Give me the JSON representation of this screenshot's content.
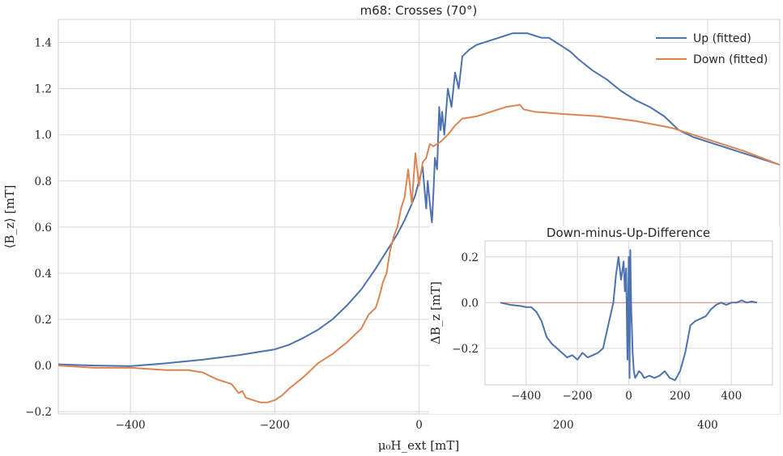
{
  "chart_data": [
    {
      "type": "line",
      "title": "m68: Crosses (70°)",
      "xlabel": "μ₀H_ext [mT]",
      "ylabel": "⟨B_z⟩ [mT]",
      "xlim": [
        -500,
        500
      ],
      "ylim": [
        -0.21,
        1.5
      ],
      "xticks": [
        -400,
        -200,
        0,
        200,
        400
      ],
      "xtick_labels": [
        "−400",
        "−200",
        "0",
        "200",
        "400"
      ],
      "yticks": [
        -0.2,
        0.0,
        0.2,
        0.4,
        0.6,
        0.8,
        1.0,
        1.2,
        1.4
      ],
      "ytick_labels": [
        "−0.2",
        "0.0",
        "0.2",
        "0.4",
        "0.6",
        "0.8",
        "1.0",
        "1.2",
        "1.4"
      ],
      "grid": true,
      "legend_position": "top-right",
      "series": [
        {
          "name": "Up (fitted)",
          "color": "#4c72b0",
          "x": [
            -500,
            -450,
            -400,
            -350,
            -300,
            -250,
            -200,
            -180,
            -160,
            -140,
            -120,
            -100,
            -80,
            -60,
            -50,
            -40,
            -30,
            -20,
            -10,
            -5,
            0,
            5,
            8,
            10,
            12,
            15,
            18,
            20,
            22,
            25,
            28,
            30,
            32,
            35,
            40,
            45,
            50,
            55,
            60,
            70,
            80,
            100,
            120,
            130,
            140,
            150,
            160,
            170,
            180,
            190,
            200,
            210,
            220,
            240,
            260,
            280,
            300,
            320,
            340,
            360,
            380,
            400,
            420,
            440,
            460,
            480,
            500
          ],
          "y": [
            0.005,
            0.0,
            -0.003,
            0.01,
            0.025,
            0.045,
            0.07,
            0.09,
            0.12,
            0.155,
            0.2,
            0.26,
            0.33,
            0.42,
            0.47,
            0.52,
            0.57,
            0.63,
            0.7,
            0.74,
            0.8,
            0.86,
            0.75,
            0.68,
            0.8,
            0.7,
            0.62,
            0.75,
            0.9,
            0.85,
            1.12,
            1.02,
            1.1,
            1.0,
            1.2,
            1.12,
            1.27,
            1.2,
            1.34,
            1.37,
            1.39,
            1.41,
            1.43,
            1.44,
            1.44,
            1.44,
            1.43,
            1.42,
            1.42,
            1.4,
            1.38,
            1.36,
            1.33,
            1.28,
            1.24,
            1.19,
            1.15,
            1.12,
            1.08,
            1.02,
            0.99,
            0.97,
            0.95,
            0.93,
            0.91,
            0.89,
            0.87
          ]
        },
        {
          "name": "Down (fitted)",
          "color": "#dd8452",
          "x": [
            -500,
            -450,
            -400,
            -350,
            -320,
            -300,
            -280,
            -260,
            -250,
            -245,
            -240,
            -230,
            -220,
            -210,
            -200,
            -190,
            -180,
            -160,
            -140,
            -120,
            -100,
            -80,
            -70,
            -60,
            -55,
            -50,
            -45,
            -40,
            -35,
            -30,
            -25,
            -20,
            -15,
            -10,
            -5,
            0,
            5,
            10,
            15,
            20,
            30,
            40,
            50,
            60,
            80,
            100,
            120,
            140,
            145,
            160,
            200,
            250,
            300,
            350,
            400,
            450,
            500
          ],
          "y": [
            0.0,
            -0.01,
            -0.01,
            -0.02,
            -0.02,
            -0.03,
            -0.06,
            -0.08,
            -0.12,
            -0.11,
            -0.14,
            -0.15,
            -0.16,
            -0.16,
            -0.15,
            -0.13,
            -0.1,
            -0.05,
            0.01,
            0.05,
            0.1,
            0.16,
            0.22,
            0.25,
            0.3,
            0.36,
            0.4,
            0.5,
            0.56,
            0.6,
            0.68,
            0.73,
            0.85,
            0.7,
            0.92,
            0.78,
            0.88,
            0.9,
            0.96,
            0.95,
            0.97,
            1.0,
            1.04,
            1.07,
            1.08,
            1.1,
            1.12,
            1.13,
            1.11,
            1.1,
            1.09,
            1.08,
            1.06,
            1.03,
            0.98,
            0.93,
            0.87
          ]
        }
      ]
    },
    {
      "type": "line",
      "title": "Down-minus-Up-Difference",
      "xlabel": "",
      "ylabel": "ΔB_z [mT]",
      "xlim": [
        -560,
        560
      ],
      "ylim": [
        -0.36,
        0.27
      ],
      "xticks": [
        -400,
        -200,
        0,
        200,
        400
      ],
      "xtick_labels": [
        "−400",
        "−200",
        "0",
        "200",
        "400"
      ],
      "yticks": [
        -0.2,
        0.0,
        0.2
      ],
      "ytick_labels": [
        "−0.2",
        "0.0",
        "0.2"
      ],
      "grid": true,
      "series": [
        {
          "color": "#4c72b0",
          "x": [
            -500,
            -460,
            -420,
            -400,
            -380,
            -360,
            -340,
            -320,
            -300,
            -280,
            -260,
            -240,
            -220,
            -200,
            -180,
            -160,
            -140,
            -120,
            -100,
            -80,
            -60,
            -50,
            -40,
            -30,
            -20,
            -15,
            -10,
            -5,
            0,
            3,
            6,
            8,
            10,
            12,
            15,
            20,
            25,
            30,
            40,
            50,
            60,
            80,
            100,
            120,
            140,
            160,
            180,
            200,
            220,
            240,
            260,
            280,
            300,
            320,
            340,
            360,
            380,
            400,
            420,
            440,
            460,
            480,
            500
          ],
          "y": [
            0.0,
            -0.01,
            -0.015,
            -0.02,
            -0.02,
            -0.04,
            -0.08,
            -0.15,
            -0.18,
            -0.2,
            -0.22,
            -0.24,
            -0.23,
            -0.25,
            -0.22,
            -0.24,
            -0.23,
            -0.22,
            -0.2,
            -0.1,
            0.0,
            0.12,
            0.2,
            0.1,
            0.18,
            0.05,
            0.15,
            -0.25,
            0.2,
            -0.33,
            0.23,
            0.1,
            -0.05,
            -0.1,
            -0.22,
            -0.3,
            -0.33,
            -0.32,
            -0.3,
            -0.31,
            -0.33,
            -0.32,
            -0.33,
            -0.32,
            -0.3,
            -0.33,
            -0.34,
            -0.3,
            -0.22,
            -0.1,
            -0.08,
            -0.07,
            -0.06,
            -0.03,
            -0.01,
            0.0,
            -0.01,
            0.0,
            0.0,
            0.01,
            0.0,
            0.005,
            0.0
          ]
        }
      ],
      "reference_line": {
        "y": 0.0,
        "color": "#e8644a"
      }
    }
  ]
}
